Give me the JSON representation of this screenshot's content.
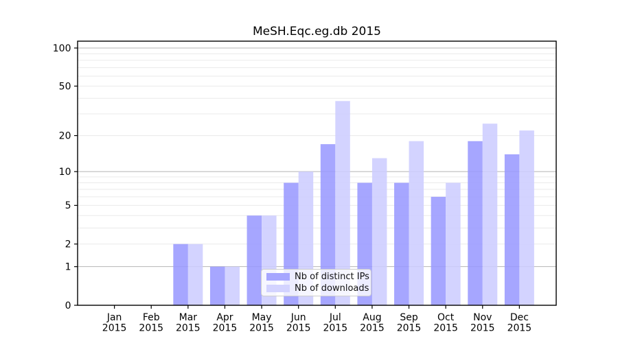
{
  "chart_data": {
    "type": "bar",
    "title": "MeSH.Eqc.eg.db 2015",
    "categories": [
      "Jan",
      "Feb",
      "Mar",
      "Apr",
      "May",
      "Jun",
      "Jul",
      "Aug",
      "Sep",
      "Oct",
      "Nov",
      "Dec"
    ],
    "category_year": "2015",
    "series": [
      {
        "name": "Nb of distinct IPs",
        "color": "#9999ff",
        "values": [
          0,
          0,
          2,
          1,
          4,
          8,
          17,
          8,
          8,
          6,
          18,
          14
        ]
      },
      {
        "name": "Nb of downloads",
        "color": "#ccccff",
        "values": [
          0,
          0,
          2,
          1,
          4,
          10,
          38,
          13,
          18,
          8,
          25,
          22
        ]
      }
    ],
    "bar_opacity": 0.87,
    "yscale": "log10(1+v)",
    "yticks": [
      0,
      1,
      2,
      5,
      10,
      20,
      50,
      100
    ],
    "ylim": [
      0,
      113
    ],
    "grid": {
      "major_values": [
        1,
        10,
        100
      ],
      "minor_values": [
        2,
        3,
        4,
        5,
        6,
        7,
        8,
        9,
        20,
        30,
        40,
        50,
        60,
        70,
        80,
        90
      ],
      "major_color": "#b4b4b4",
      "minor_color": "#eaeaea"
    },
    "legend": {
      "position": "lower-center"
    },
    "axis_color": "#000000"
  }
}
